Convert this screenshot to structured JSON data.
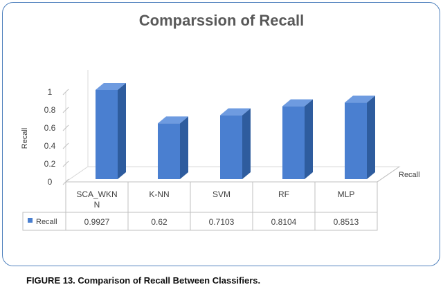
{
  "chart_data": {
    "type": "bar",
    "title": "Comparssion of Recall",
    "categories": [
      "SCA_WKNN",
      "K-NN",
      "SVM",
      "RF",
      "MLP"
    ],
    "category_lines": [
      [
        "SCA_WKN",
        "N"
      ],
      [
        "K-NN"
      ],
      [
        "SVM"
      ],
      [
        "RF"
      ],
      [
        "MLP"
      ]
    ],
    "series": [
      {
        "name": "Recall",
        "values": [
          0.9927,
          0.62,
          0.7103,
          0.8104,
          0.8513
        ],
        "color": "#4a7fd0"
      }
    ],
    "value_labels": [
      "0.9927",
      "0.62",
      "0.7103",
      "0.8104",
      "0.8513"
    ],
    "ylabel": "Recall",
    "zlabel": "Recall",
    "ylim": [
      0,
      1
    ],
    "yticks": [
      0,
      0.2,
      0.4,
      0.6,
      0.8,
      1
    ],
    "ytick_labels": [
      "0",
      "0.2",
      "0.4",
      "0.6",
      "0.8",
      "1"
    ],
    "grid": false,
    "style": "3d-column",
    "data_table": true,
    "border_color": "#4f81bd"
  },
  "caption": "FIGURE 13. Comparison of Recall Between Classifiers."
}
